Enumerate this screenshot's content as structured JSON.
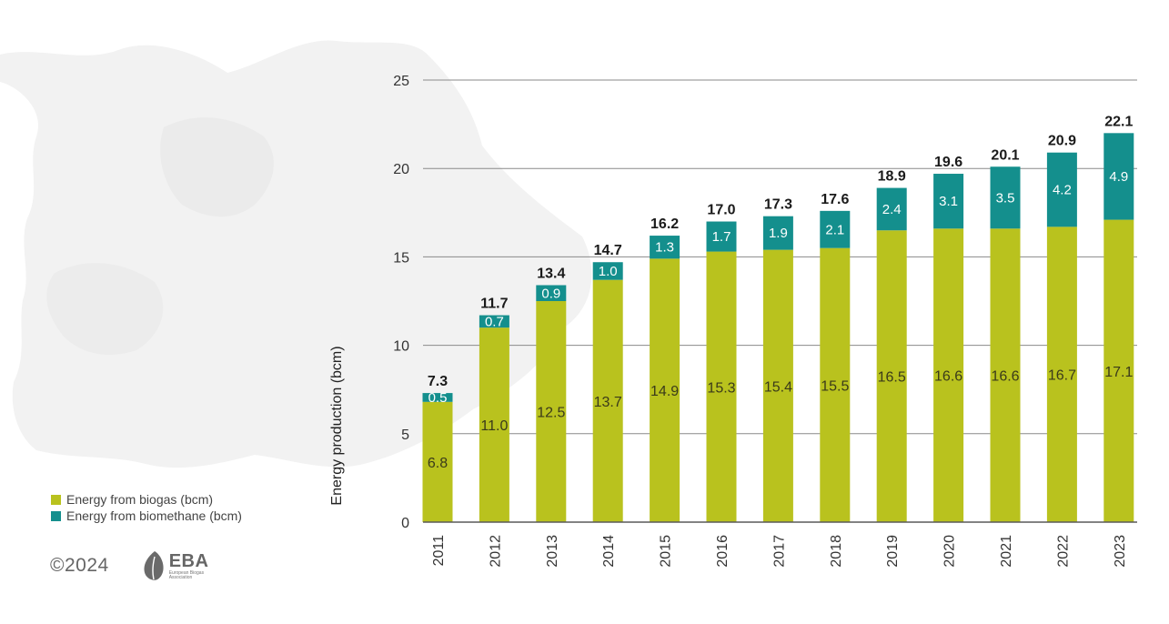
{
  "colors": {
    "biogas": "#b9c21e",
    "biomethane": "#148f8d",
    "grid": "#8a8a8a",
    "map": "#f1f1f1"
  },
  "chart_data": {
    "type": "bar",
    "stacked": true,
    "categories": [
      "2011",
      "2012",
      "2013",
      "2014",
      "2015",
      "2016",
      "2017",
      "2018",
      "2019",
      "2020",
      "2021",
      "2022",
      "2023"
    ],
    "series": [
      {
        "name": "Energy from biogas (bcm)",
        "values": [
          6.8,
          11.0,
          12.5,
          13.7,
          14.9,
          15.3,
          15.4,
          15.5,
          16.5,
          16.6,
          16.6,
          16.7,
          17.1
        ],
        "labels": [
          "6.8",
          "11.0",
          "12.5",
          "13.7",
          "14.9",
          "15.3",
          "15.4",
          "15.5",
          "16.5",
          "16.6",
          "16.6",
          "16.7",
          "17.1"
        ]
      },
      {
        "name": "Energy from biomethane (bcm)",
        "values": [
          0.5,
          0.7,
          0.9,
          1.0,
          1.3,
          1.7,
          1.9,
          2.1,
          2.4,
          3.1,
          3.5,
          4.2,
          4.9
        ],
        "labels": [
          "0.5",
          "0.7",
          "0.9",
          "1.0",
          "1.3",
          "1.7",
          "1.9",
          "2.1",
          "2.4",
          "3.1",
          "3.5",
          "4.2",
          "4.9"
        ]
      }
    ],
    "totals": [
      "7.3",
      "11.7",
      "13.4",
      "14.7",
      "16.2",
      "17.0",
      "17.3",
      "17.6",
      "18.9",
      "19.6",
      "20.1",
      "20.9",
      "22.1"
    ],
    "ylabel": "Energy production (bcm)",
    "xlabel": "",
    "ylim": [
      0,
      25
    ],
    "yticks": [
      "0",
      "5",
      "10",
      "15",
      "20",
      "25"
    ],
    "grid": true,
    "legend_position": "bottom-left"
  },
  "footer": {
    "copyright": "©2024",
    "logo_name": "EBA",
    "logo_subtitle": "European Biogas Association"
  }
}
